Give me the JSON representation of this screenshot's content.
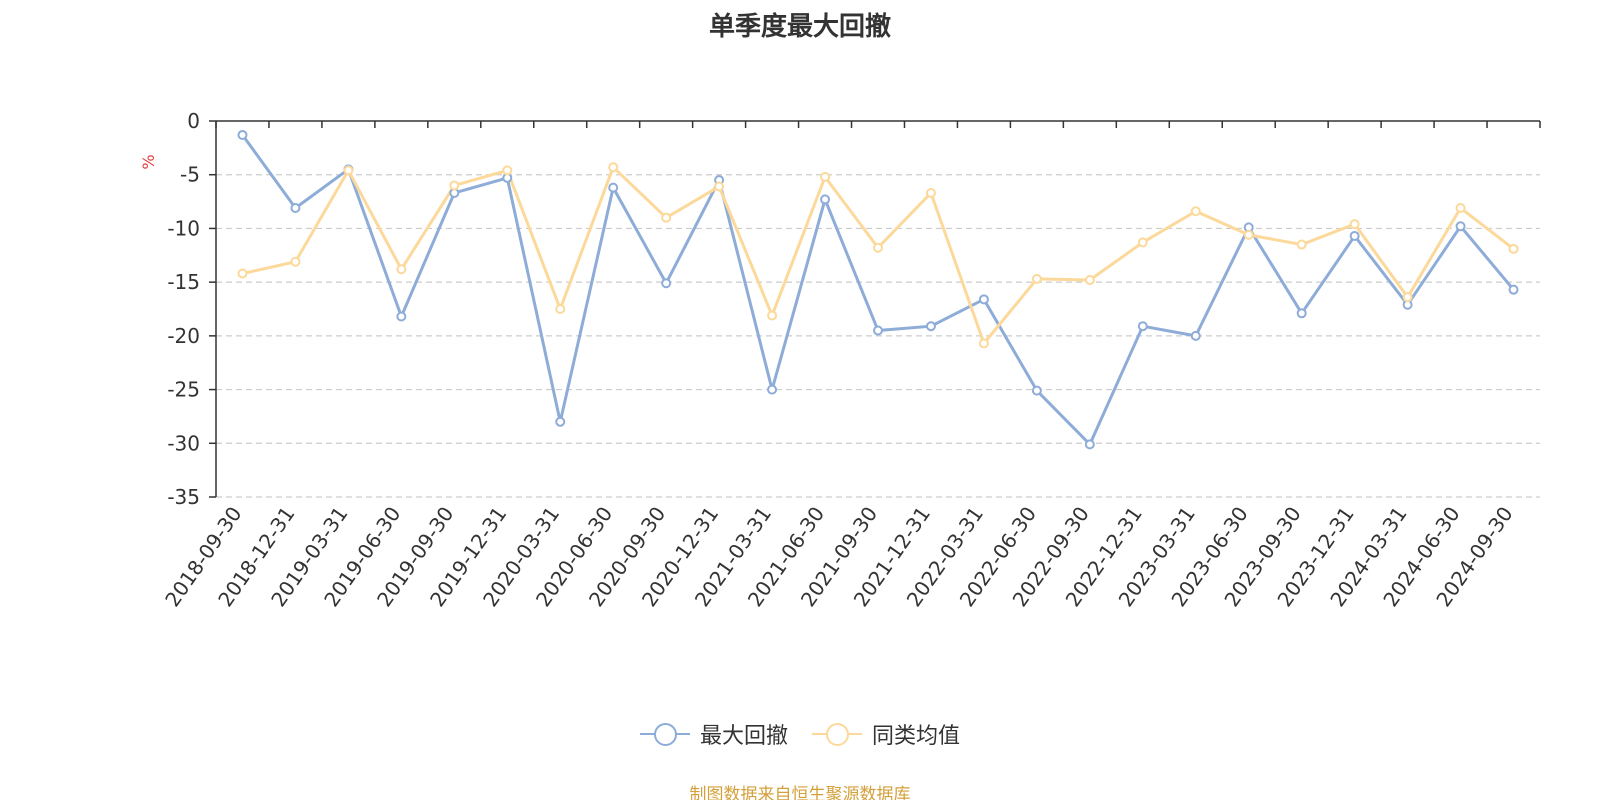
{
  "chart_data": {
    "type": "line",
    "title": "单季度最大回撤",
    "ylabel": "%",
    "ylim": [
      -35,
      0
    ],
    "yticks": [
      0,
      -5,
      -10,
      -15,
      -20,
      -25,
      -30,
      -35
    ],
    "grid": true,
    "legend_position": "bottom",
    "categories": [
      "2018-09-30",
      "2018-12-31",
      "2019-03-31",
      "2019-06-30",
      "2019-09-30",
      "2019-12-31",
      "2020-03-31",
      "2020-06-30",
      "2020-09-30",
      "2020-12-31",
      "2021-03-31",
      "2021-06-30",
      "2021-09-30",
      "2021-12-31",
      "2022-03-31",
      "2022-06-30",
      "2022-09-30",
      "2022-12-31",
      "2023-03-31",
      "2023-06-30",
      "2023-09-30",
      "2023-12-31",
      "2024-03-31",
      "2024-06-30",
      "2024-09-30"
    ],
    "series": [
      {
        "name": "最大回撤",
        "color": "#8eacd8",
        "values": [
          -1.3,
          -8.1,
          -4.5,
          -18.2,
          -6.7,
          -5.3,
          -28.0,
          -6.2,
          -15.1,
          -5.5,
          -25.0,
          -7.3,
          -19.5,
          -19.1,
          -16.6,
          -25.1,
          -30.1,
          -19.1,
          -20.0,
          -9.9,
          -17.9,
          -10.7,
          -17.1,
          -9.8,
          -15.7
        ]
      },
      {
        "name": "同类均值",
        "color": "#fcd99a",
        "values": [
          -14.2,
          -13.1,
          -4.6,
          -13.8,
          -6.0,
          -4.6,
          -17.5,
          -4.3,
          -9.0,
          -6.1,
          -18.1,
          -5.2,
          -11.8,
          -6.7,
          -20.7,
          -14.7,
          -14.8,
          -11.3,
          -8.4,
          -10.6,
          -11.5,
          -9.6,
          -16.4,
          -8.1,
          -11.9
        ]
      }
    ]
  },
  "footer": {
    "source_text": "制图数据来自恒生聚源数据库",
    "source_color": "#d4a03a"
  },
  "colors": {
    "axis": "#333333",
    "grid": "#cccccc",
    "unit_label": "#e33e3e"
  }
}
